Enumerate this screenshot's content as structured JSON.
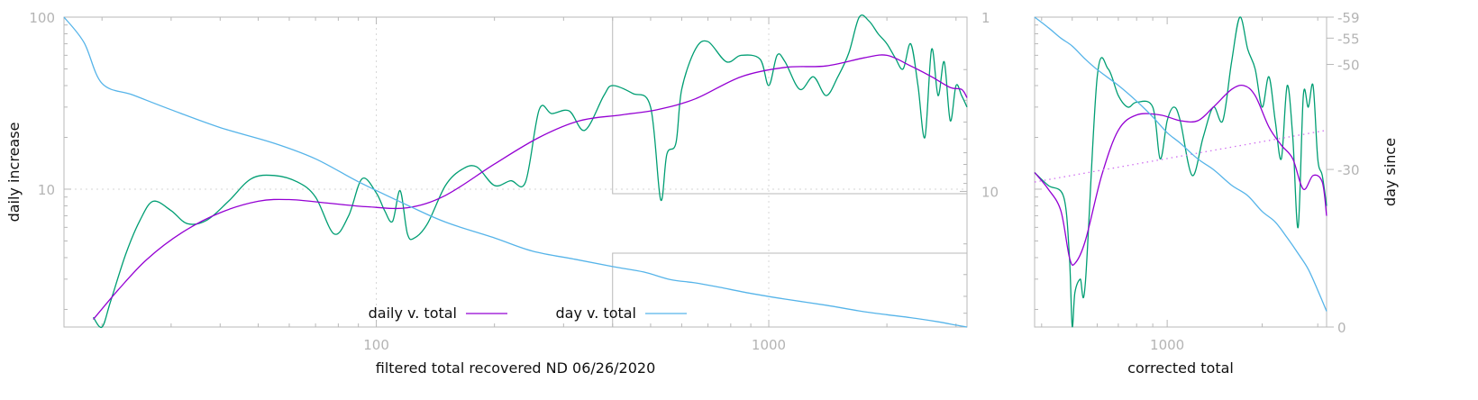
{
  "chart_data": [
    {
      "type": "line",
      "xlabel": "filtered total recovered ND 06/26/2020",
      "ylabel": "daily increase",
      "y2label": "",
      "xscale": "log",
      "yscale": "log",
      "y2scale": "log-reversed",
      "xlim": [
        16,
        3200
      ],
      "ylim": [
        1.58,
        100
      ],
      "y2lim": [
        1,
        60
      ],
      "x_ticks": [
        "100",
        "1000"
      ],
      "y_ticks": [
        "10",
        "100"
      ],
      "y2_ticks": [
        "1",
        "10"
      ],
      "grid": true,
      "legend": {
        "placement": "bottom-center",
        "entries": [
          "daily v. total",
          "day v. total"
        ]
      },
      "colors": {
        "daily_smoothed": "#9400d3",
        "daily_raw": "#009e73",
        "day": "#56b4e9"
      },
      "series": [
        {
          "name": "daily v. total",
          "axis": "y",
          "color": "#9400d3",
          "x": [
            19,
            22,
            26,
            32,
            40,
            50,
            60,
            75,
            95,
            120,
            150,
            200,
            260,
            330,
            420,
            520,
            650,
            850,
            1100,
            1400,
            1750,
            2000,
            2300,
            2600,
            2900,
            3100,
            3200
          ],
          "y": [
            1.75,
            2.6,
            3.9,
            5.6,
            7.3,
            8.5,
            8.7,
            8.3,
            7.9,
            7.8,
            9.2,
            14,
            20,
            25,
            27,
            29,
            33.5,
            45,
            51,
            52,
            58,
            60,
            52,
            45,
            39,
            38,
            34
          ]
        },
        {
          "name": "",
          "axis": "y",
          "color": "#009e73",
          "x": [
            19,
            20,
            21,
            23,
            25,
            27,
            30,
            33,
            37,
            42,
            48,
            55,
            63,
            70,
            78,
            85,
            92,
            100,
            105,
            110,
            115,
            120,
            125,
            135,
            150,
            165,
            180,
            200,
            220,
            240,
            260,
            280,
            310,
            340,
            380,
            400,
            450,
            500,
            530,
            550,
            580,
            600,
            650,
            700,
            780,
            850,
            950,
            1000,
            1050,
            1100,
            1200,
            1300,
            1400,
            1500,
            1600,
            1700,
            1800,
            1900,
            2000,
            2100,
            2200,
            2300,
            2400,
            2500,
            2600,
            2700,
            2800,
            2900,
            3000,
            3100,
            3200
          ],
          "y": [
            1.8,
            1.55,
            2.2,
            4.2,
            6.6,
            8.5,
            7.5,
            6.3,
            6.6,
            8.5,
            11.5,
            12,
            11,
            9,
            5.5,
            7,
            11.5,
            9.5,
            7.5,
            6.5,
            9.8,
            5.5,
            5.2,
            6.3,
            10.5,
            13,
            13.5,
            10.5,
            11.2,
            11,
            29,
            27.5,
            28.5,
            22,
            35,
            40,
            36,
            30,
            8.7,
            16,
            18.5,
            38,
            65,
            72,
            55,
            60,
            57,
            40,
            60,
            55,
            38,
            45,
            35,
            45,
            62,
            100,
            95,
            80,
            70,
            58,
            50,
            70,
            40,
            20,
            65,
            35,
            55,
            25,
            40,
            35,
            30
          ]
        },
        {
          "name": "day v. total",
          "axis": "y2",
          "color": "#56b4e9",
          "x": [
            16,
            18,
            20,
            24,
            30,
            40,
            55,
            70,
            90,
            120,
            150,
            200,
            250,
            320,
            400,
            480,
            560,
            650,
            750,
            900,
            1100,
            1400,
            1700,
            2000,
            2300,
            2700,
            3000,
            3200
          ],
          "y": [
            1,
            1.4,
            2.4,
            2.8,
            3.4,
            4.3,
            5.3,
            6.5,
            8.8,
            12,
            15,
            18.5,
            22,
            24.5,
            27,
            29,
            32,
            33.5,
            35.5,
            38.5,
            41.5,
            45,
            48.5,
            51,
            53,
            56,
            58.5,
            60
          ]
        }
      ]
    },
    {
      "type": "line",
      "xlabel": "corrected total",
      "ylabel": "",
      "y2label": "day since",
      "xscale": "log",
      "yscale": "log",
      "y2scale": "linear",
      "xlim": [
        380,
        3200
      ],
      "ylim": [
        1.58,
        100
      ],
      "y2lim": [
        0,
        -59
      ],
      "x_ticks": [
        "1000"
      ],
      "y2_ticks": [
        "-59",
        "-55",
        "-50",
        "-30",
        "0"
      ],
      "grid": false,
      "colors": {
        "daily_smoothed": "#9400d3",
        "daily_raw": "#009e73",
        "day": "#56b4e9",
        "trend": "#d070f0"
      },
      "series": [
        {
          "name": "",
          "axis": "y",
          "color": "#9400d3",
          "x": [
            380,
            420,
            460,
            490,
            510,
            550,
            620,
            700,
            800,
            950,
            1100,
            1250,
            1400,
            1600,
            1750,
            1900,
            2100,
            2300,
            2500,
            2700,
            2900,
            3100,
            3200
          ],
          "y": [
            12.5,
            10,
            7.5,
            4,
            3.7,
            5,
            12,
            22,
            27,
            27,
            25,
            25,
            30,
            38,
            40,
            35,
            23,
            18,
            15,
            10,
            12,
            11,
            7
          ]
        },
        {
          "name": "",
          "axis": "y",
          "color": "#009e73",
          "x": [
            380,
            420,
            470,
            490,
            500,
            510,
            530,
            550,
            600,
            650,
            700,
            750,
            800,
            900,
            950,
            1000,
            1050,
            1100,
            1200,
            1300,
            1400,
            1500,
            1600,
            1700,
            1800,
            1900,
            2000,
            2100,
            2200,
            2300,
            2400,
            2500,
            2600,
            2700,
            2800,
            2900,
            3000,
            3100,
            3200
          ],
          "y": [
            12.5,
            10.5,
            9,
            4,
            1.6,
            2.5,
            3,
            2.8,
            45,
            50,
            35,
            30,
            32,
            30,
            15,
            25,
            30,
            25,
            12,
            20,
            30,
            25,
            55,
            100,
            65,
            50,
            30,
            45,
            25,
            15,
            40,
            20,
            6,
            35,
            30,
            40,
            15,
            12,
            8
          ]
        },
        {
          "name": "",
          "axis": "y",
          "color": "#d070f0",
          "x": [
            380,
            3200
          ],
          "y": [
            11,
            22
          ]
        },
        {
          "name": "",
          "axis": "y2",
          "color": "#56b4e9",
          "x": [
            380,
            420,
            460,
            500,
            550,
            600,
            700,
            800,
            900,
            1000,
            1100,
            1250,
            1400,
            1600,
            1800,
            2000,
            2200,
            2400,
            2600,
            2800,
            3000,
            3200
          ],
          "y": [
            -59,
            -57,
            -55,
            -53.5,
            -51,
            -49,
            -46,
            -43,
            -40,
            -37,
            -35,
            -32,
            -30,
            -27,
            -25,
            -22,
            -20,
            -17,
            -14,
            -11,
            -7,
            -3
          ]
        }
      ]
    }
  ]
}
